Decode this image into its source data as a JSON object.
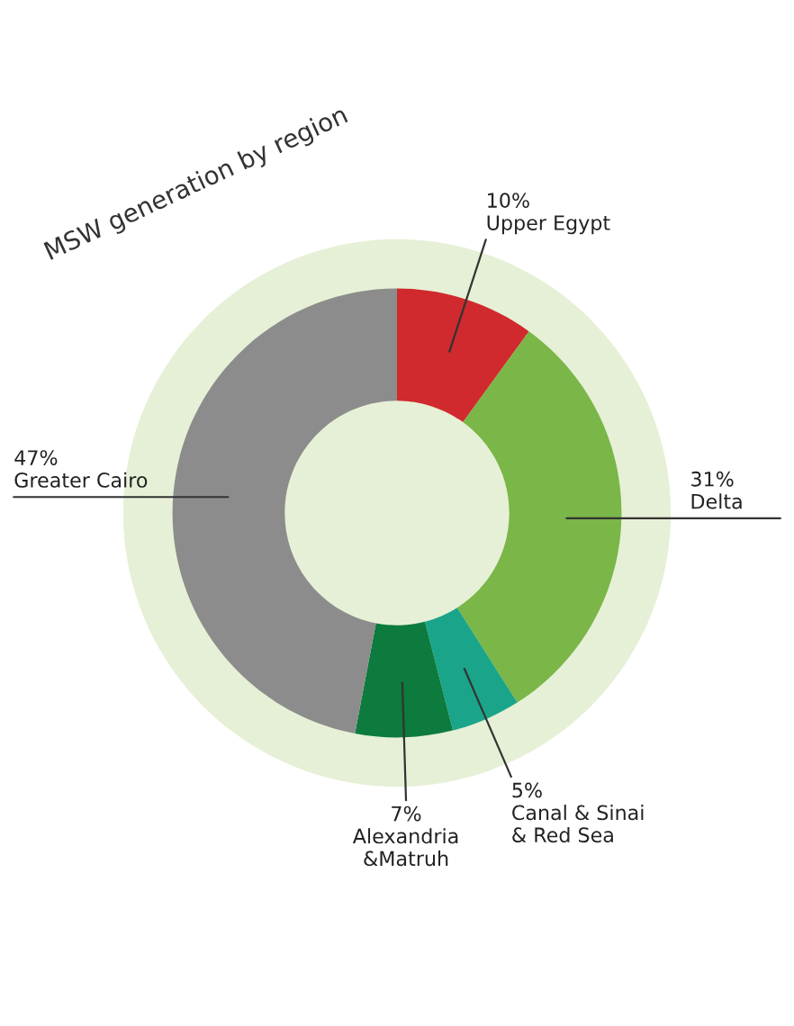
{
  "chart_data": {
    "type": "donut",
    "title": "MSW generation by region",
    "categories": [
      "Upper Egypt",
      "Delta",
      "Canal & Sinai\n& Red Sea",
      "Alexandria\n&Matruh",
      "Greater Cairo"
    ],
    "values": [
      10,
      31,
      5,
      7,
      47
    ],
    "value_labels": [
      "10%",
      "31%",
      "5%",
      "7%",
      "47%"
    ],
    "colors": [
      "#d02a2e",
      "#7ab648",
      "#1aa58a",
      "#0d7a3e",
      "#8c8c8c"
    ],
    "legend": false
  }
}
